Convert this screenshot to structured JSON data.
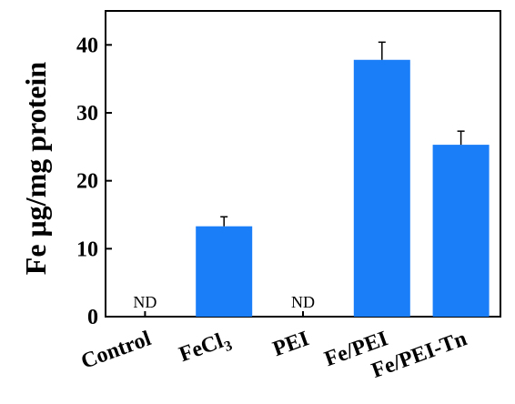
{
  "chart_data": {
    "type": "bar",
    "ylabel": "Fe μg/mg protein",
    "xlabel": "",
    "ylim": [
      0,
      45
    ],
    "yticks": [
      0,
      10,
      20,
      30,
      40
    ],
    "bar_color": "#1a7ef8",
    "categories": [
      {
        "label": "Control",
        "sub": ""
      },
      {
        "label": "FeCl",
        "sub": "3"
      },
      {
        "label": "PEI",
        "sub": ""
      },
      {
        "label": "Fe/PEI",
        "sub": ""
      },
      {
        "label": "Fe/PEI-Tn",
        "sub": ""
      }
    ],
    "values": [
      null,
      13.3,
      null,
      37.8,
      25.3
    ],
    "errors": [
      null,
      1.4,
      null,
      2.6,
      2.0
    ],
    "annotations": [
      "ND",
      "",
      "ND",
      "",
      ""
    ]
  }
}
